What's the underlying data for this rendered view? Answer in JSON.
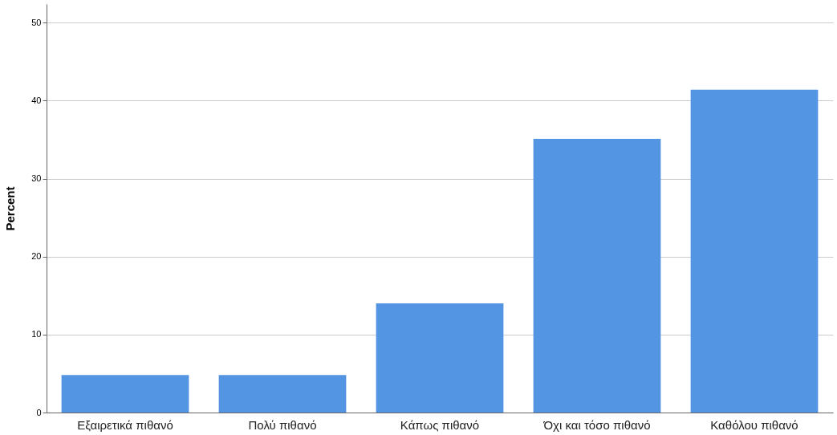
{
  "chart_data": {
    "type": "bar",
    "ylabel": "Percent",
    "categories": [
      "Εξαιρετικά πιθανό",
      "Πολύ πιθανό",
      "Κάπως πιθανό",
      "Όχι και τόσο πιθανό",
      "Καθόλου πιθανό"
    ],
    "values": [
      4.8,
      4.8,
      14.0,
      35.1,
      41.4
    ],
    "color": "#5394e3",
    "ylim": [
      0,
      52.4
    ],
    "yticks": [
      0,
      10,
      20,
      30,
      40,
      50
    ],
    "grid": "y"
  }
}
